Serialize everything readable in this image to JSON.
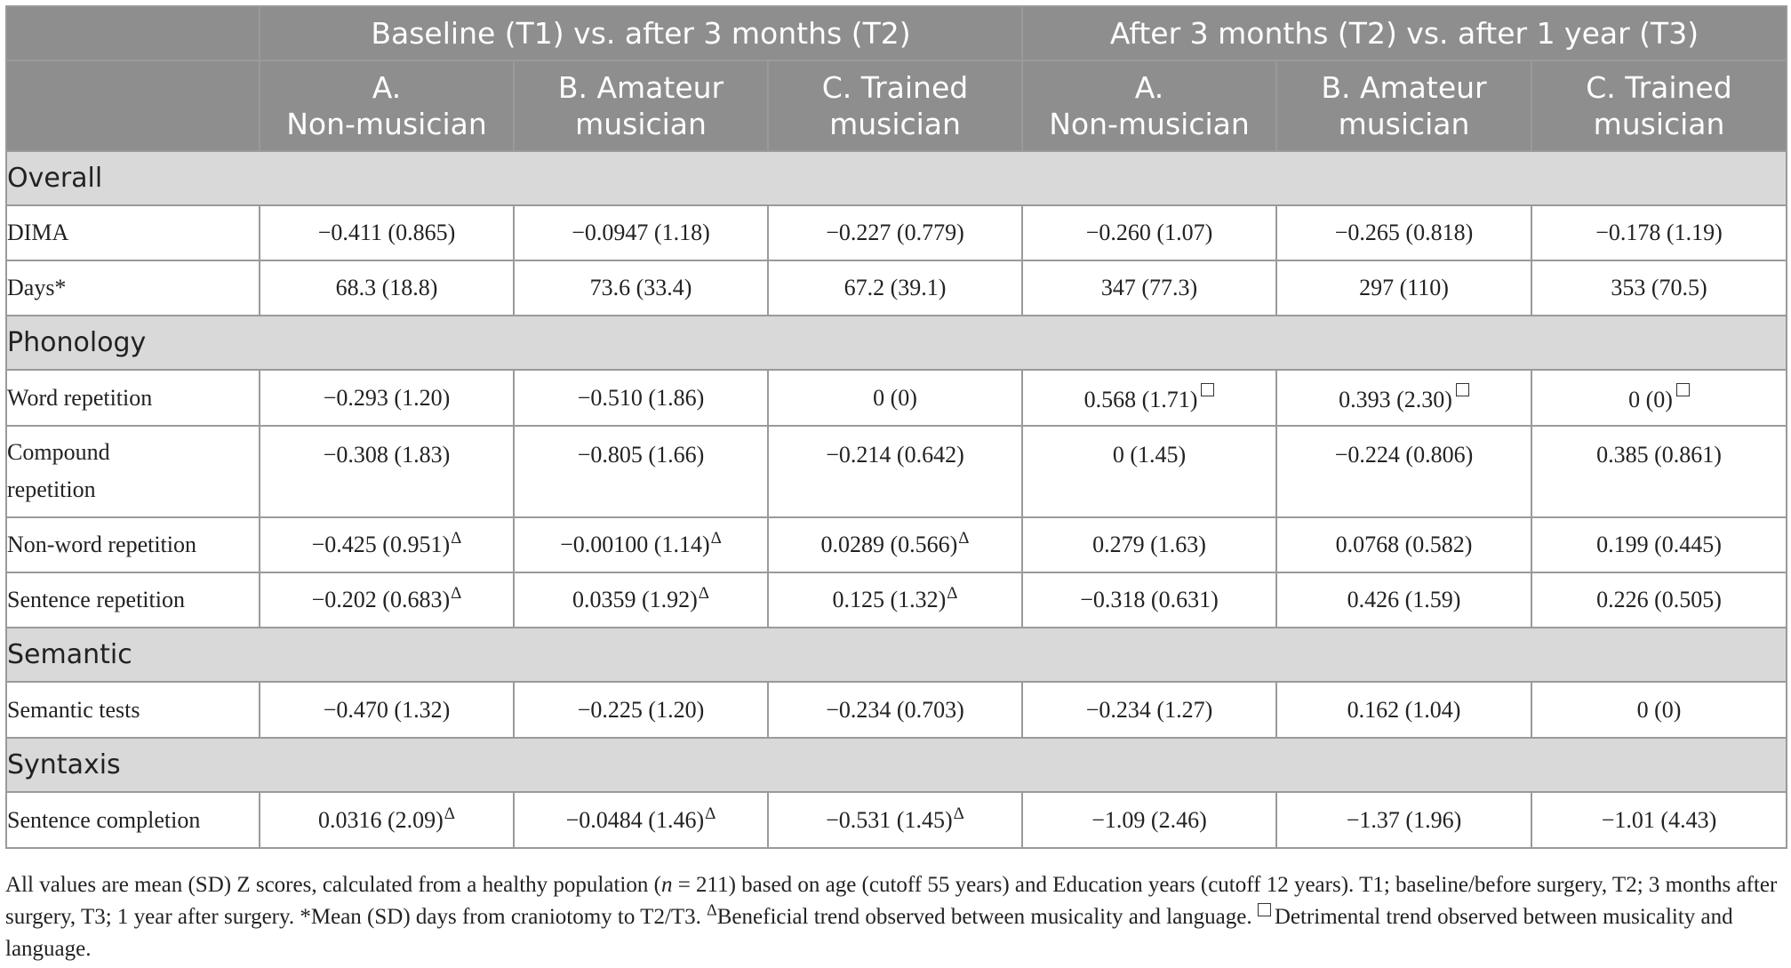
{
  "header": {
    "group1": "Baseline (T1) vs. after 3 months (T2)",
    "group2": "After 3 months (T2) vs. after 1 year (T3)",
    "cols": [
      {
        "line1": "A.",
        "line2": "Non-musician"
      },
      {
        "line1": "B. Amateur",
        "line2": "musician"
      },
      {
        "line1": "C. Trained",
        "line2": "musician"
      },
      {
        "line1": "A.",
        "line2": "Non-musician"
      },
      {
        "line1": "B. Amateur",
        "line2": "musician"
      },
      {
        "line1": "C. Trained",
        "line2": "musician"
      }
    ]
  },
  "sections": {
    "overall": "Overall",
    "phonology": "Phonology",
    "semantic": "Semantic",
    "syntaxis": "Syntaxis"
  },
  "rows": {
    "dima": {
      "label": "DIMA",
      "v": [
        "−0.411 (0.865)",
        "−0.0947 (1.18)",
        "−0.227 (0.779)",
        "−0.260 (1.07)",
        "−0.265 (0.818)",
        "−0.178 (1.19)"
      ]
    },
    "days": {
      "label": "Days*",
      "v": [
        "68.3 (18.8)",
        "73.6 (33.4)",
        "67.2 (39.1)",
        "347 (77.3)",
        "297 (110)",
        "353 (70.5)"
      ]
    },
    "word": {
      "label": "Word repetition",
      "v": [
        "−0.293 (1.20)",
        "−0.510 (1.86)",
        "0 (0)",
        "0.568 (1.71)",
        "0.393 (2.30)",
        "0 (0)"
      ]
    },
    "compound": {
      "label1": "Compound",
      "label2": "repetition",
      "v": [
        "−0.308 (1.83)",
        "−0.805 (1.66)",
        "−0.214 (0.642)",
        "0 (1.45)",
        "−0.224 (0.806)",
        "0.385 (0.861)"
      ]
    },
    "nonword": {
      "label": "Non-word repetition",
      "v": [
        "−0.425 (0.951)",
        "−0.00100 (1.14)",
        "0.0289 (0.566)",
        "0.279 (1.63)",
        "0.0768 (0.582)",
        "0.199 (0.445)"
      ]
    },
    "sentence": {
      "label": "Sentence repetition",
      "v": [
        "−0.202 (0.683)",
        "0.0359 (1.92)",
        "0.125 (1.32)",
        "−0.318 (0.631)",
        "0.426 (1.59)",
        "0.226 (0.505)"
      ]
    },
    "semantic": {
      "label": "Semantic tests",
      "v": [
        "−0.470 (1.32)",
        "−0.225 (1.20)",
        "−0.234 (0.703)",
        "−0.234 (1.27)",
        "0.162 (1.04)",
        "0 (0)"
      ]
    },
    "completion": {
      "label": "Sentence completion",
      "v": [
        "0.0316 (2.09)",
        "−0.0484 (1.46)",
        "−0.531 (1.45)",
        "−1.09 (2.46)",
        "−1.37 (1.96)",
        "−1.01 (4.43)"
      ]
    }
  },
  "marks": {
    "triangle": "Δ"
  },
  "notes": {
    "p1": "All values are mean (SD) Z scores, calculated from a healthy population (",
    "n": "n",
    "p2": " = 211) based on age (cutoff 55 years) and Education years (cutoff 12 years). T1; baseline/before surgery, T2; 3 months after surgery, T3; 1 year after surgery. *Mean (SD) days from craniotomy to T2/T3. ",
    "p3": "Beneficial trend observed between musicality and language. ",
    "p4": "Detrimental trend observed between musicality and language."
  }
}
